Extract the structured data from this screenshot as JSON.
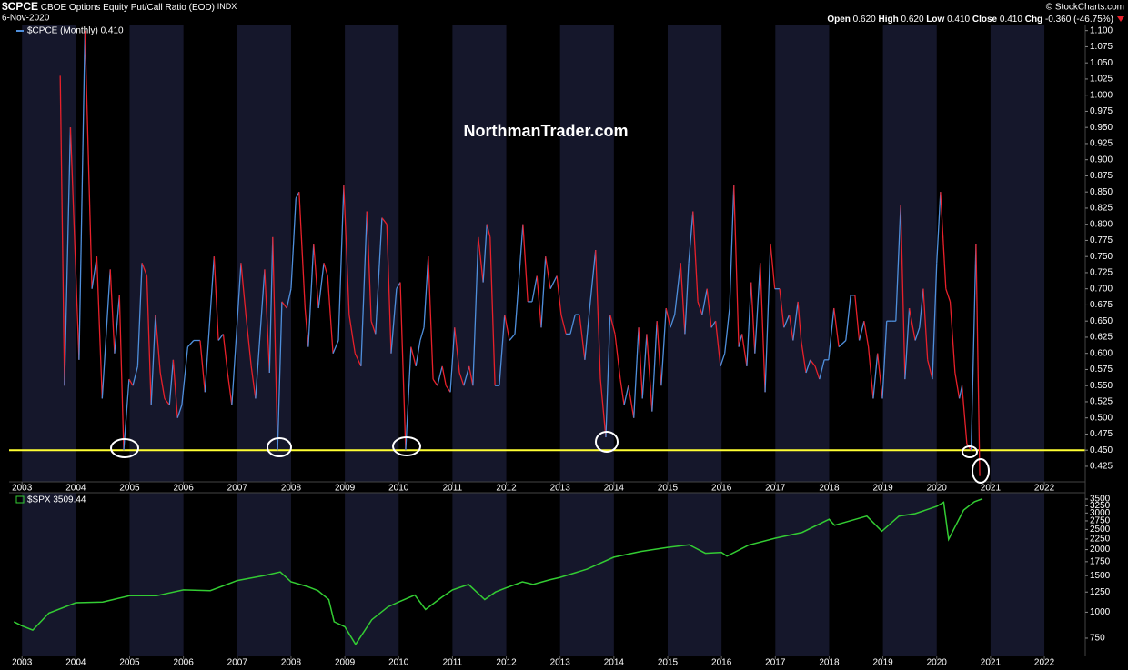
{
  "chart_data": [
    {
      "type": "line",
      "title": "$CPCE",
      "subtitle": "CBOE Options Equity Put/Call Ratio (EOD)",
      "exchange": "INDX",
      "date": "6-Nov-2020",
      "credit": "© StockCharts.com",
      "watermark": "NorthmanTrader.com",
      "quote": [
        {
          "label": "Open",
          "value": "0.620"
        },
        {
          "label": "High",
          "value": "0.620"
        },
        {
          "label": "Low",
          "value": "0.410"
        },
        {
          "label": "Close",
          "value": "0.410"
        },
        {
          "label": "Chg",
          "value": "-0.360 (-46.75%)"
        }
      ],
      "xlim": [
        2002.76,
        2022.76
      ],
      "xticks": [
        2003,
        2004,
        2005,
        2006,
        2007,
        2008,
        2009,
        2010,
        2011,
        2012,
        2013,
        2014,
        2015,
        2016,
        2017,
        2018,
        2019,
        2020,
        2021,
        2022
      ],
      "ylim": [
        0.401,
        1.108
      ],
      "yticks": [
        0.425,
        {
          "value": 0.45,
          "label": "0.450"
        },
        0.475,
        {
          "value": 0.5,
          "label": "0.500"
        },
        0.525,
        {
          "value": 0.55,
          "label": "0.550"
        },
        0.575,
        {
          "value": 0.6,
          "label": "0.600"
        },
        0.625,
        {
          "value": 0.65,
          "label": "0.650"
        },
        0.675,
        {
          "value": 0.7,
          "label": "0.700"
        },
        0.725,
        {
          "value": 0.75,
          "label": "0.750"
        },
        0.775,
        {
          "value": 0.8,
          "label": "0.800"
        },
        0.825,
        {
          "value": 0.85,
          "label": "0.850"
        },
        0.875,
        {
          "value": 0.9,
          "label": "0.900"
        },
        0.925,
        {
          "value": 0.95,
          "label": "0.950"
        },
        0.975,
        {
          "value": 1,
          "label": "1.000"
        },
        1.025,
        {
          "value": 1.05,
          "label": "1.050"
        },
        1.075,
        {
          "value": 1.1,
          "label": "1.100"
        }
      ],
      "hline": 0.45,
      "hline_color": "#ffff33",
      "series": [
        {
          "name": "$CPCE (Monthly) 0.410",
          "up_color": "#4f8fdc",
          "down_color": "#e8202a",
          "x": [
            2003.71,
            2003.79,
            2003.9,
            2004.06,
            2004.17,
            2004.3,
            2004.39,
            2004.49,
            2004.64,
            2004.72,
            2004.81,
            2004.89,
            2004.99,
            2005.06,
            2005.15,
            2005.23,
            2005.32,
            2005.4,
            2005.48,
            2005.57,
            2005.65,
            2005.74,
            2005.81,
            2005.89,
            2005.97,
            2006.08,
            2006.19,
            2006.31,
            2006.4,
            2006.57,
            2006.65,
            2006.74,
            2006.82,
            2006.9,
            2007.07,
            2007.16,
            2007.26,
            2007.34,
            2007.51,
            2007.6,
            2007.66,
            2007.75,
            2007.83,
            2007.92,
            2008.0,
            2008.09,
            2008.15,
            2008.26,
            2008.32,
            2008.42,
            2008.51,
            2008.61,
            2008.68,
            2008.78,
            2008.88,
            2008.98,
            2009.08,
            2009.19,
            2009.3,
            2009.41,
            2009.49,
            2009.57,
            2009.69,
            2009.78,
            2009.86,
            2009.96,
            2010.03,
            2010.13,
            2010.23,
            2010.32,
            2010.4,
            2010.47,
            2010.55,
            2010.64,
            2010.72,
            2010.81,
            2010.88,
            2010.96,
            2011.04,
            2011.13,
            2011.21,
            2011.31,
            2011.38,
            2011.48,
            2011.57,
            2011.64,
            2011.7,
            2011.79,
            2011.87,
            2011.97,
            2012.06,
            2012.16,
            2012.31,
            2012.4,
            2012.48,
            2012.57,
            2012.65,
            2012.73,
            2012.82,
            2012.94,
            2013.02,
            2013.11,
            2013.19,
            2013.28,
            2013.36,
            2013.46,
            2013.55,
            2013.66,
            2013.75,
            2013.85,
            2013.93,
            2014.02,
            2014.12,
            2014.19,
            2014.27,
            2014.37,
            2014.46,
            2014.53,
            2014.61,
            2014.71,
            2014.8,
            2014.88,
            2014.97,
            2015.05,
            2015.13,
            2015.24,
            2015.32,
            2015.39,
            2015.47,
            2015.56,
            2015.64,
            2015.73,
            2015.81,
            2015.89,
            2015.98,
            2016.06,
            2016.15,
            2016.23,
            2016.32,
            2016.38,
            2016.47,
            2016.55,
            2016.62,
            2016.72,
            2016.81,
            2016.91,
            2016.99,
            2017.08,
            2017.16,
            2017.26,
            2017.33,
            2017.42,
            2017.48,
            2017.57,
            2017.65,
            2017.74,
            2017.82,
            2017.91,
            2017.99,
            2018.09,
            2018.18,
            2018.31,
            2018.4,
            2018.48,
            2018.56,
            2018.65,
            2018.73,
            2018.82,
            2018.9,
            2018.99,
            2019.07,
            2019.16,
            2019.24,
            2019.33,
            2019.41,
            2019.49,
            2019.6,
            2019.68,
            2019.75,
            2019.83,
            2019.92,
            2020.0,
            2020.07,
            2020.17,
            2020.25,
            2020.34,
            2020.42,
            2020.47,
            2020.56,
            2020.64,
            2020.73,
            2020.8
          ],
          "values": [
            1.03,
            0.55,
            0.95,
            0.59,
            1.1,
            0.7,
            0.75,
            0.53,
            0.73,
            0.6,
            0.69,
            0.45,
            0.56,
            0.55,
            0.58,
            0.74,
            0.72,
            0.52,
            0.66,
            0.57,
            0.53,
            0.52,
            0.59,
            0.5,
            0.52,
            0.61,
            0.62,
            0.62,
            0.54,
            0.75,
            0.62,
            0.63,
            0.57,
            0.52,
            0.74,
            0.66,
            0.58,
            0.53,
            0.73,
            0.57,
            0.78,
            0.45,
            0.68,
            0.67,
            0.7,
            0.84,
            0.85,
            0.67,
            0.61,
            0.77,
            0.67,
            0.74,
            0.72,
            0.6,
            0.62,
            0.86,
            0.66,
            0.6,
            0.58,
            0.82,
            0.65,
            0.63,
            0.81,
            0.8,
            0.6,
            0.7,
            0.71,
            0.45,
            0.61,
            0.58,
            0.62,
            0.64,
            0.75,
            0.56,
            0.55,
            0.58,
            0.55,
            0.54,
            0.64,
            0.57,
            0.55,
            0.58,
            0.55,
            0.78,
            0.71,
            0.8,
            0.78,
            0.55,
            0.55,
            0.66,
            0.62,
            0.63,
            0.8,
            0.68,
            0.68,
            0.72,
            0.64,
            0.75,
            0.7,
            0.72,
            0.66,
            0.63,
            0.63,
            0.66,
            0.66,
            0.59,
            0.67,
            0.76,
            0.56,
            0.47,
            0.66,
            0.63,
            0.56,
            0.52,
            0.55,
            0.5,
            0.64,
            0.53,
            0.63,
            0.51,
            0.65,
            0.55,
            0.67,
            0.64,
            0.66,
            0.74,
            0.63,
            0.74,
            0.82,
            0.68,
            0.66,
            0.7,
            0.64,
            0.65,
            0.58,
            0.6,
            0.67,
            0.86,
            0.61,
            0.63,
            0.58,
            0.71,
            0.6,
            0.74,
            0.54,
            0.77,
            0.7,
            0.7,
            0.64,
            0.66,
            0.62,
            0.68,
            0.62,
            0.57,
            0.59,
            0.58,
            0.56,
            0.59,
            0.59,
            0.67,
            0.61,
            0.62,
            0.69,
            0.69,
            0.62,
            0.65,
            0.61,
            0.53,
            0.6,
            0.53,
            0.65,
            0.65,
            0.65,
            0.83,
            0.56,
            0.67,
            0.62,
            0.64,
            0.7,
            0.59,
            0.56,
            0.74,
            0.85,
            0.7,
            0.68,
            0.57,
            0.53,
            0.55,
            0.46,
            0.45,
            0.77,
            0.41
          ]
        }
      ]
    },
    {
      "type": "line",
      "log_scale": true,
      "xlim": [
        2002.76,
        2022.76
      ],
      "xticks": [
        2003,
        2004,
        2005,
        2006,
        2007,
        2008,
        2009,
        2010,
        2011,
        2012,
        2013,
        2014,
        2015,
        2016,
        2017,
        2018,
        2019,
        2020,
        2021,
        2022
      ],
      "ylim": [
        613,
        3756
      ],
      "yticks": [
        750,
        1000,
        1250,
        1500,
        1750,
        2000,
        2250,
        2500,
        2750,
        3000,
        3250,
        3500
      ],
      "series": [
        {
          "name": "$SPX 3509.44",
          "color": "#33cc33",
          "x": [
            2002.85,
            2003.0,
            2003.2,
            2003.5,
            2004.0,
            2004.5,
            2005.0,
            2005.5,
            2006.0,
            2006.5,
            2007.0,
            2007.5,
            2007.8,
            2008.0,
            2008.3,
            2008.5,
            2008.7,
            2008.8,
            2009.0,
            2009.2,
            2009.5,
            2009.8,
            2010.0,
            2010.3,
            2010.5,
            2010.8,
            2011.0,
            2011.3,
            2011.6,
            2011.8,
            2012.0,
            2012.3,
            2012.5,
            2012.8,
            2013.0,
            2013.5,
            2014.0,
            2014.5,
            2015.0,
            2015.4,
            2015.7,
            2016.0,
            2016.1,
            2016.5,
            2017.0,
            2017.5,
            2018.0,
            2018.1,
            2018.7,
            2018.98,
            2019.3,
            2019.6,
            2020.0,
            2020.13,
            2020.22,
            2020.5,
            2020.7,
            2020.85
          ],
          "values": [
            900,
            860,
            820,
            990,
            1110,
            1120,
            1200,
            1200,
            1280,
            1270,
            1420,
            1500,
            1560,
            1400,
            1330,
            1270,
            1150,
            900,
            850,
            700,
            920,
            1060,
            1120,
            1210,
            1030,
            1180,
            1280,
            1360,
            1150,
            1250,
            1310,
            1400,
            1360,
            1430,
            1470,
            1610,
            1840,
            1960,
            2050,
            2110,
            1920,
            1940,
            1860,
            2100,
            2270,
            2420,
            2800,
            2620,
            2900,
            2450,
            2900,
            2980,
            3230,
            3380,
            2240,
            3100,
            3400,
            3509.44
          ]
        }
      ]
    }
  ]
}
